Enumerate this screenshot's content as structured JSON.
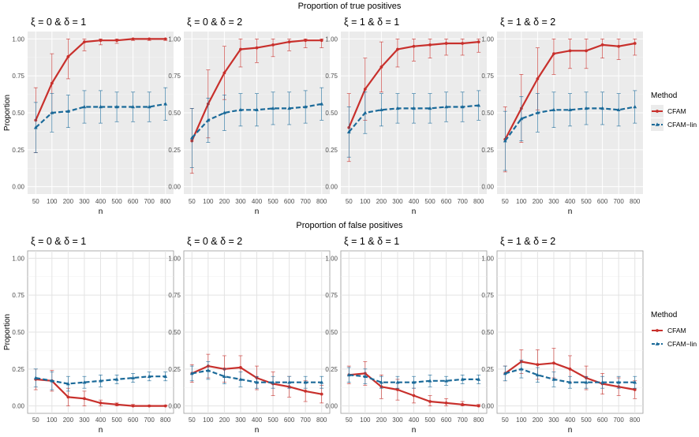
{
  "chart_data": {
    "type": "line",
    "x": [
      50,
      100,
      200,
      300,
      400,
      500,
      600,
      700,
      800
    ],
    "xlabel": "n",
    "ylabel": "Proportion",
    "ylim": [
      0,
      1
    ],
    "yticks": [
      "0.00",
      "0.25",
      "0.50",
      "0.75",
      "1.00"
    ],
    "legend": {
      "title": "Method",
      "entries": [
        {
          "name": "CFAM",
          "color": "#c8302c",
          "linestyle": "solid"
        },
        {
          "name": "CFAM−lin",
          "color": "#1b6a99",
          "linestyle": "dashed"
        }
      ],
      "placement": "right"
    },
    "sections": [
      {
        "title": "Proportion of true positives",
        "theme": "grey",
        "panels": [
          {
            "title": "ξ = 0  &  δ = 1",
            "series": [
              {
                "name": "CFAM",
                "values": [
                  0.45,
                  0.7,
                  0.88,
                  0.98,
                  0.99,
                  0.99,
                  1.0,
                  1.0,
                  1.0
                ],
                "err": [
                  0.22,
                  0.2,
                  0.15,
                  0.06,
                  0.03,
                  0.02,
                  0.01,
                  0.01,
                  0.01
                ]
              },
              {
                "name": "CFAM−lin",
                "values": [
                  0.4,
                  0.5,
                  0.51,
                  0.54,
                  0.54,
                  0.54,
                  0.54,
                  0.54,
                  0.56
                ],
                "err": [
                  0.17,
                  0.13,
                  0.11,
                  0.11,
                  0.11,
                  0.1,
                  0.1,
                  0.1,
                  0.11
                ]
              }
            ]
          },
          {
            "title": "ξ = 0  &  δ = 2",
            "series": [
              {
                "name": "CFAM",
                "values": [
                  0.31,
                  0.56,
                  0.77,
                  0.93,
                  0.94,
                  0.96,
                  0.98,
                  0.99,
                  0.99
                ],
                "err": [
                  0.22,
                  0.23,
                  0.18,
                  0.12,
                  0.1,
                  0.08,
                  0.06,
                  0.05,
                  0.05
                ]
              },
              {
                "name": "CFAM−lin",
                "values": [
                  0.33,
                  0.45,
                  0.5,
                  0.52,
                  0.52,
                  0.53,
                  0.53,
                  0.54,
                  0.56
                ],
                "err": [
                  0.2,
                  0.15,
                  0.12,
                  0.11,
                  0.11,
                  0.11,
                  0.11,
                  0.11,
                  0.11
                ]
              }
            ]
          },
          {
            "title": "ξ = 1  &  δ = 1",
            "series": [
              {
                "name": "CFAM",
                "values": [
                  0.4,
                  0.66,
                  0.81,
                  0.93,
                  0.95,
                  0.96,
                  0.97,
                  0.97,
                  0.98
                ],
                "err": [
                  0.23,
                  0.21,
                  0.17,
                  0.12,
                  0.1,
                  0.09,
                  0.08,
                  0.08,
                  0.07
                ]
              },
              {
                "name": "CFAM−lin",
                "values": [
                  0.37,
                  0.5,
                  0.52,
                  0.53,
                  0.53,
                  0.53,
                  0.54,
                  0.54,
                  0.55
                ],
                "err": [
                  0.17,
                  0.14,
                  0.11,
                  0.1,
                  0.1,
                  0.1,
                  0.1,
                  0.1,
                  0.1
                ]
              }
            ]
          },
          {
            "title": "ξ = 1  &  δ = 2",
            "series": [
              {
                "name": "CFAM",
                "values": [
                  0.32,
                  0.53,
                  0.73,
                  0.9,
                  0.92,
                  0.92,
                  0.96,
                  0.95,
                  0.97
                ],
                "err": [
                  0.22,
                  0.23,
                  0.21,
                  0.14,
                  0.12,
                  0.12,
                  0.09,
                  0.09,
                  0.08
                ]
              },
              {
                "name": "CFAM−lin",
                "values": [
                  0.31,
                  0.46,
                  0.5,
                  0.52,
                  0.52,
                  0.53,
                  0.53,
                  0.52,
                  0.54
                ],
                "err": [
                  0.2,
                  0.15,
                  0.13,
                  0.12,
                  0.11,
                  0.11,
                  0.11,
                  0.11,
                  0.11
                ]
              }
            ]
          }
        ]
      },
      {
        "title": "Proportion of false positives",
        "theme": "white",
        "panels": [
          {
            "title": "ξ = 0  &  δ = 1",
            "series": [
              {
                "name": "CFAM",
                "values": [
                  0.18,
                  0.17,
                  0.06,
                  0.05,
                  0.02,
                  0.01,
                  0.0,
                  0.0,
                  0.0
                ],
                "err": [
                  0.07,
                  0.07,
                  0.06,
                  0.05,
                  0.02,
                  0.01,
                  0.01,
                  0.005,
                  0.005
                ]
              },
              {
                "name": "CFAM−lin",
                "values": [
                  0.19,
                  0.17,
                  0.15,
                  0.16,
                  0.17,
                  0.18,
                  0.19,
                  0.2,
                  0.2
                ],
                "err": [
                  0.06,
                  0.06,
                  0.05,
                  0.04,
                  0.04,
                  0.03,
                  0.03,
                  0.03,
                  0.03
                ]
              }
            ]
          },
          {
            "title": "ξ = 0  &  δ = 2",
            "series": [
              {
                "name": "CFAM",
                "values": [
                  0.22,
                  0.27,
                  0.25,
                  0.26,
                  0.19,
                  0.15,
                  0.13,
                  0.1,
                  0.08
                ],
                "err": [
                  0.06,
                  0.08,
                  0.09,
                  0.08,
                  0.08,
                  0.08,
                  0.07,
                  0.07,
                  0.06
                ]
              },
              {
                "name": "CFAM−lin",
                "values": [
                  0.22,
                  0.24,
                  0.2,
                  0.18,
                  0.16,
                  0.16,
                  0.16,
                  0.16,
                  0.16
                ],
                "err": [
                  0.05,
                  0.06,
                  0.05,
                  0.05,
                  0.04,
                  0.04,
                  0.04,
                  0.04,
                  0.04
                ]
              }
            ]
          },
          {
            "title": "ξ = 1  &  δ = 1",
            "series": [
              {
                "name": "CFAM",
                "values": [
                  0.21,
                  0.22,
                  0.13,
                  0.11,
                  0.07,
                  0.03,
                  0.02,
                  0.01,
                  0.0
                ],
                "err": [
                  0.06,
                  0.08,
                  0.08,
                  0.07,
                  0.05,
                  0.04,
                  0.03,
                  0.02,
                  0.01
                ]
              },
              {
                "name": "CFAM−lin",
                "values": [
                  0.21,
                  0.2,
                  0.16,
                  0.16,
                  0.16,
                  0.17,
                  0.17,
                  0.18,
                  0.18
                ],
                "err": [
                  0.05,
                  0.05,
                  0.04,
                  0.04,
                  0.04,
                  0.04,
                  0.03,
                  0.03,
                  0.03
                ]
              }
            ]
          },
          {
            "title": "ξ = 1  &  δ = 2",
            "series": [
              {
                "name": "CFAM",
                "values": [
                  0.22,
                  0.3,
                  0.28,
                  0.29,
                  0.25,
                  0.19,
                  0.15,
                  0.13,
                  0.11
                ],
                "err": [
                  0.05,
                  0.08,
                  0.1,
                  0.1,
                  0.09,
                  0.08,
                  0.07,
                  0.06,
                  0.06
                ]
              },
              {
                "name": "CFAM−lin",
                "values": [
                  0.22,
                  0.25,
                  0.21,
                  0.18,
                  0.16,
                  0.16,
                  0.16,
                  0.16,
                  0.16
                ],
                "err": [
                  0.05,
                  0.06,
                  0.05,
                  0.05,
                  0.04,
                  0.04,
                  0.04,
                  0.04,
                  0.04
                ]
              }
            ]
          }
        ]
      }
    ]
  }
}
